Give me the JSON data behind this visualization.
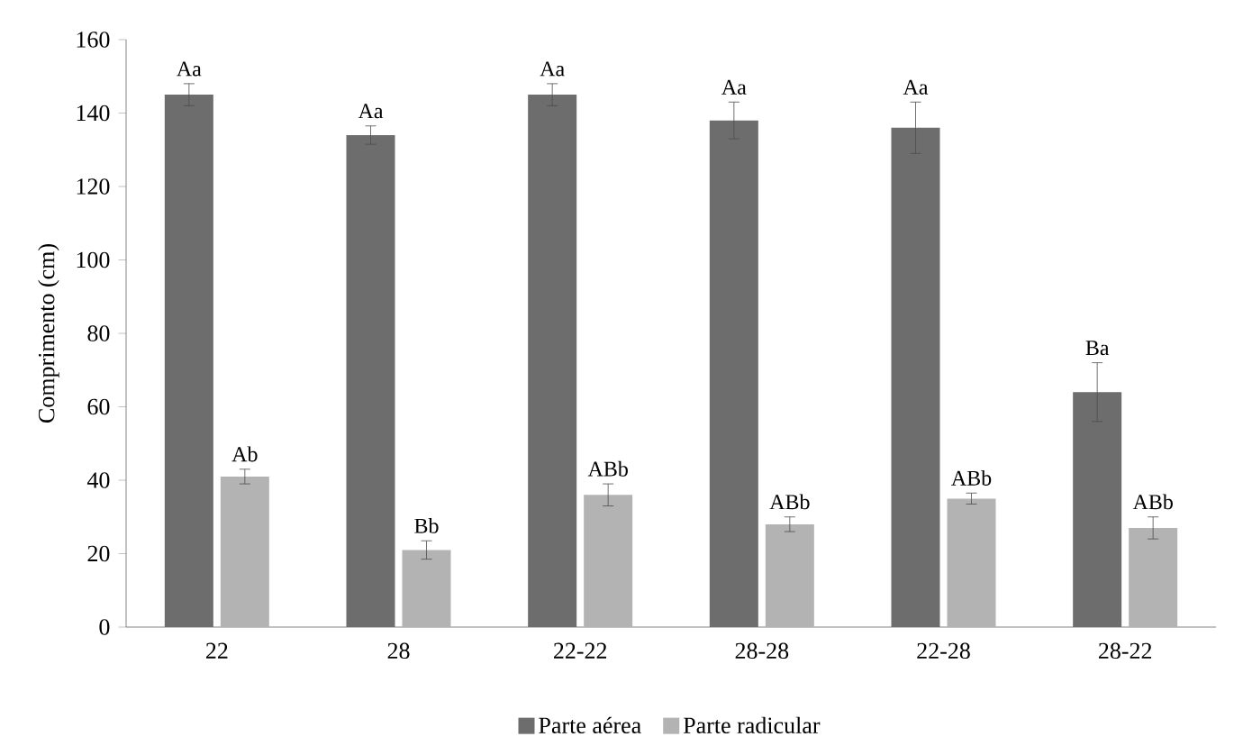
{
  "chart_data": {
    "type": "bar",
    "ylabel": "Comprimento (cm)",
    "categories": [
      "22",
      "28",
      "22-22",
      "28-28",
      "22-28",
      "28-22"
    ],
    "series": [
      {
        "name": "Parte aérea",
        "color": "#6d6d6d",
        "values": [
          145,
          134,
          145,
          138,
          136,
          64
        ],
        "errors": [
          3,
          2.5,
          3,
          5,
          7,
          8
        ],
        "value_labels": [
          "Aa",
          "Aa",
          "Aa",
          "Aa",
          "Aa",
          "Ba"
        ]
      },
      {
        "name": "Parte radicular",
        "color": "#b3b3b3",
        "values": [
          41,
          21,
          36,
          28,
          35,
          27
        ],
        "errors": [
          2,
          2.5,
          3,
          2,
          1.5,
          3
        ],
        "value_labels": [
          "Ab",
          "Bb",
          "ABb",
          "ABb",
          "ABb",
          "ABb"
        ]
      }
    ],
    "ylim": [
      0,
      160
    ],
    "yticks": [
      0,
      20,
      40,
      60,
      80,
      100,
      120,
      140,
      160
    ],
    "grid": false,
    "legend": "bottom"
  }
}
